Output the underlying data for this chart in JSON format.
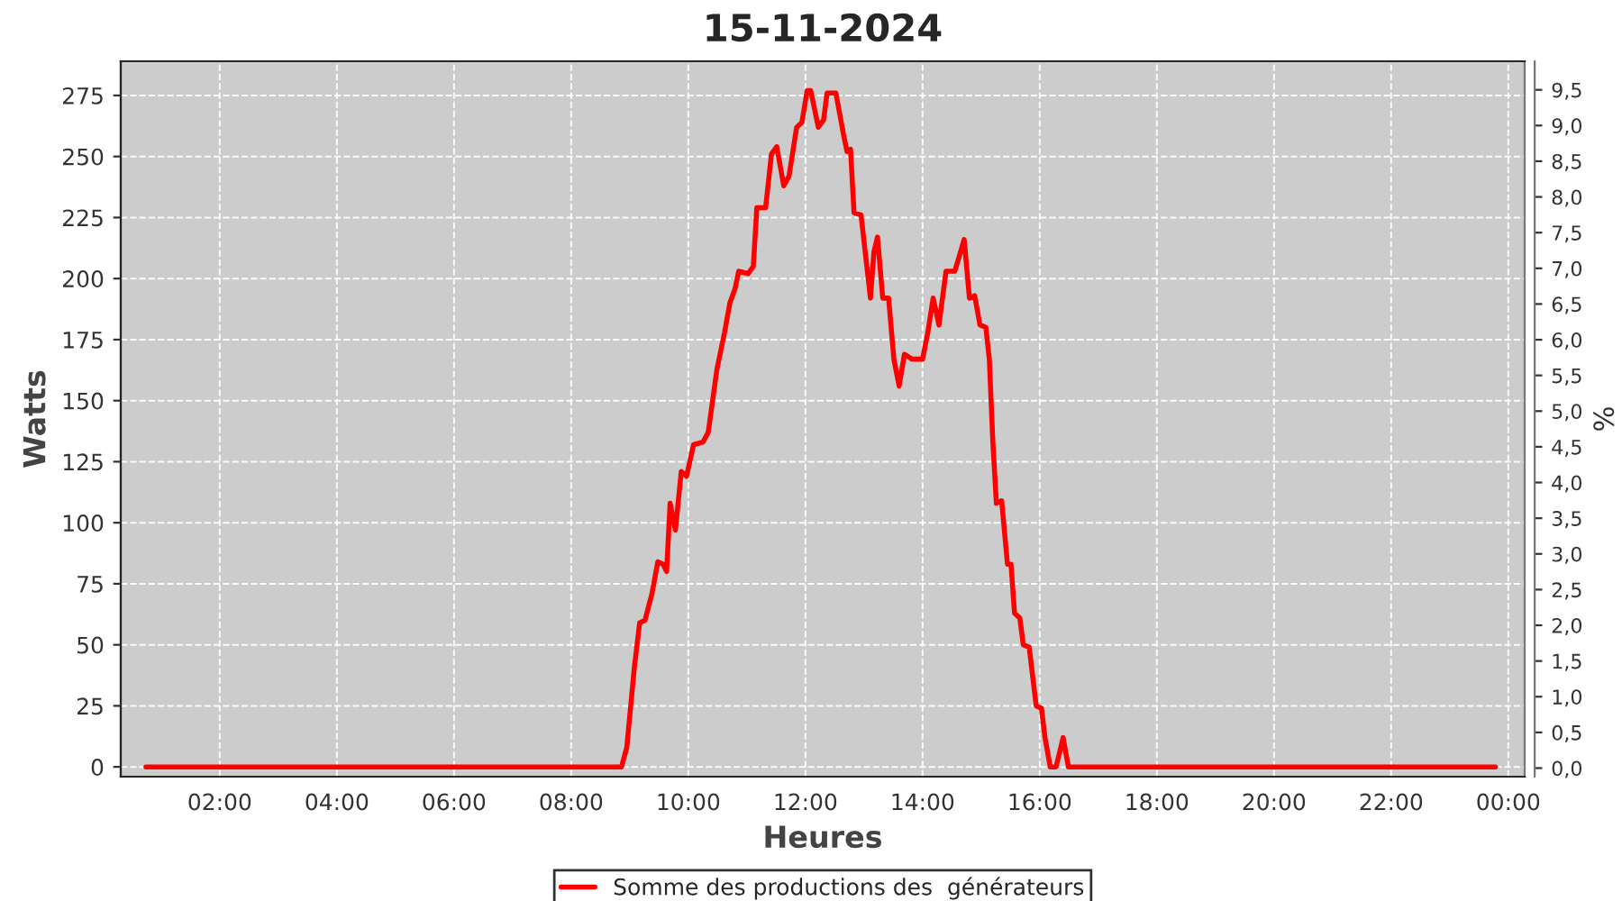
{
  "chart_data": {
    "type": "line",
    "title": "15-11-2024",
    "xlabel": "Heures",
    "ylabel": "Watts",
    "y2label": "%",
    "x": [
      0.74,
      8.86,
      8.95,
      9.08,
      9.17,
      9.26,
      9.38,
      9.48,
      9.57,
      9.63,
      9.69,
      9.78,
      9.88,
      9.97,
      10.09,
      10.25,
      10.34,
      10.49,
      10.62,
      10.71,
      10.8,
      10.86,
      11.02,
      11.11,
      11.17,
      11.32,
      11.42,
      11.51,
      11.63,
      11.72,
      11.85,
      11.94,
      12.03,
      12.09,
      12.22,
      12.31,
      12.37,
      12.52,
      12.65,
      12.71,
      12.77,
      12.83,
      12.95,
      13.02,
      13.11,
      13.17,
      13.23,
      13.32,
      13.42,
      13.51,
      13.6,
      13.69,
      13.82,
      14.0,
      14.09,
      14.18,
      14.28,
      14.4,
      14.55,
      14.65,
      14.71,
      14.8,
      14.89,
      14.98,
      15.08,
      15.14,
      15.2,
      15.26,
      15.35,
      15.45,
      15.51,
      15.57,
      15.66,
      15.72,
      15.82,
      15.88,
      15.94,
      16.03,
      16.09,
      16.18,
      16.28,
      16.4,
      16.49,
      23.78
    ],
    "series": [
      {
        "name": "Somme des productions des  générateurs",
        "color": "#ff0000",
        "values": [
          0,
          0,
          8,
          41,
          59,
          60,
          71,
          84,
          83,
          80,
          108,
          97,
          121,
          119,
          132,
          133,
          137,
          163,
          178,
          190,
          196,
          203,
          202,
          205,
          229,
          229,
          251,
          254,
          238,
          242,
          262,
          264,
          277,
          277,
          262,
          265,
          276,
          276,
          259,
          252,
          253,
          227,
          226,
          211,
          192,
          211,
          217,
          192,
          192,
          167,
          156,
          169,
          167,
          167,
          178,
          192,
          181,
          203,
          203,
          211,
          216,
          192,
          193,
          181,
          180,
          167,
          133,
          108,
          109,
          83,
          83,
          63,
          61,
          50,
          49,
          37,
          25,
          24,
          12,
          0,
          0,
          12,
          0,
          0
        ]
      }
    ],
    "xlim": [
      0.31,
      24.28
    ],
    "xticks": [
      {
        "value": 2,
        "label": "02:00"
      },
      {
        "value": 4,
        "label": "04:00"
      },
      {
        "value": 6,
        "label": "06:00"
      },
      {
        "value": 8,
        "label": "08:00"
      },
      {
        "value": 10,
        "label": "10:00"
      },
      {
        "value": 12,
        "label": "12:00"
      },
      {
        "value": 14,
        "label": "14:00"
      },
      {
        "value": 16,
        "label": "16:00"
      },
      {
        "value": 18,
        "label": "18:00"
      },
      {
        "value": 20,
        "label": "20:00"
      },
      {
        "value": 22,
        "label": "22:00"
      },
      {
        "value": 24,
        "label": "00:00"
      }
    ],
    "ylim": [
      -4,
      289
    ],
    "yticks": [
      0,
      25,
      50,
      75,
      100,
      125,
      150,
      175,
      200,
      225,
      250,
      275
    ],
    "y2lim": [
      -0.12,
      9.9
    ],
    "y2ticks": [
      {
        "value": 0,
        "label": "0,0"
      },
      {
        "value": 0.5,
        "label": "0,5"
      },
      {
        "value": 1,
        "label": "1,0"
      },
      {
        "value": 1.5,
        "label": "1,5"
      },
      {
        "value": 2,
        "label": "2,0"
      },
      {
        "value": 2.5,
        "label": "2,5"
      },
      {
        "value": 3,
        "label": "3,0"
      },
      {
        "value": 3.5,
        "label": "3,5"
      },
      {
        "value": 4,
        "label": "4,0"
      },
      {
        "value": 4.5,
        "label": "4,5"
      },
      {
        "value": 5,
        "label": "5,0"
      },
      {
        "value": 5.5,
        "label": "5,5"
      },
      {
        "value": 6,
        "label": "6,0"
      },
      {
        "value": 6.5,
        "label": "6,5"
      },
      {
        "value": 7,
        "label": "7,0"
      },
      {
        "value": 7.5,
        "label": "7,5"
      },
      {
        "value": 8,
        "label": "8,0"
      },
      {
        "value": 8.5,
        "label": "8,5"
      },
      {
        "value": 9,
        "label": "9,0"
      },
      {
        "value": 9.5,
        "label": "9,5"
      }
    ],
    "grid": true,
    "legend": "bottom",
    "line_style": "solid"
  }
}
